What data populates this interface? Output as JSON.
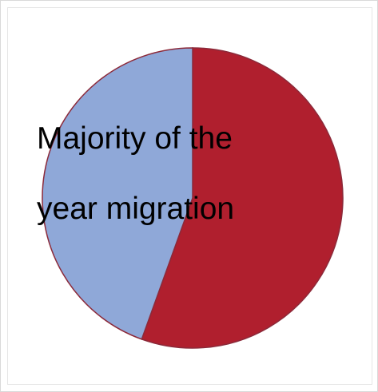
{
  "chart_data": {
    "type": "pie",
    "title_lines": [
      "Majority of the",
      "year migration"
    ],
    "slices": [
      {
        "value": 55.5,
        "color": "#b01f2e"
      },
      {
        "value": 44.5,
        "color": "#8fa8d8"
      }
    ],
    "slice_stroke": "#8c2a3a",
    "legend": "none"
  }
}
